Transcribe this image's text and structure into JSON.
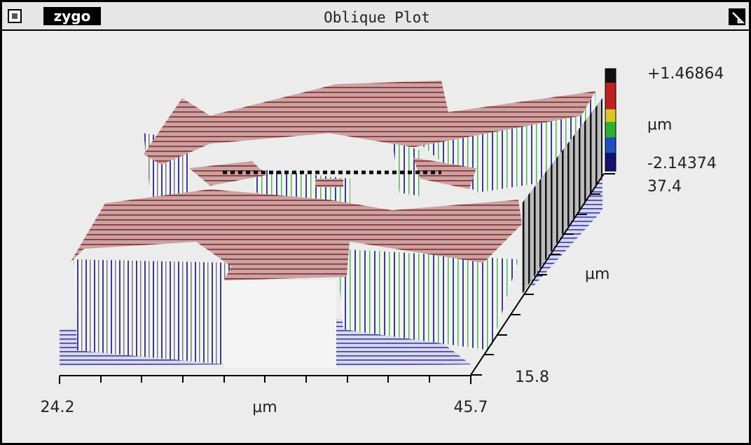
{
  "window": {
    "logo": "zygo",
    "title": "Oblique Plot"
  },
  "colorbar": {
    "max": "+1.46864",
    "unit": "µm",
    "min": "-2.14374"
  },
  "x_axis": {
    "start": "24.2",
    "unit": "µm",
    "end": "45.7"
  },
  "y_axis": {
    "start": "15.8",
    "unit": "µm",
    "end": "37.4"
  }
}
